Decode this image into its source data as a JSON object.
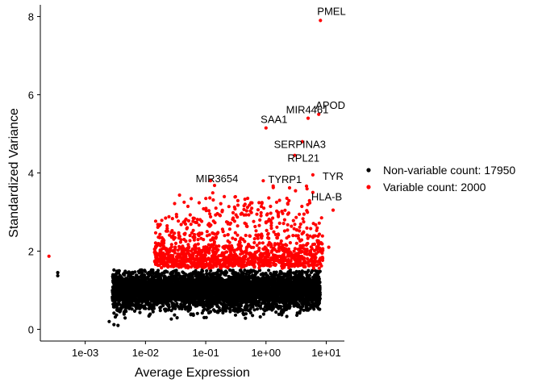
{
  "chart_data": {
    "type": "scatter",
    "title": "",
    "xlabel": "Average Expression",
    "ylabel": "Standardized Variance",
    "x_scale": "log10",
    "xlim": [
      0.00018,
      20
    ],
    "ylim": [
      -0.3,
      8.3
    ],
    "x_ticks": [
      {
        "value": 0.001,
        "label": "1e-03"
      },
      {
        "value": 0.01,
        "label": "1e-02"
      },
      {
        "value": 0.1,
        "label": "1e-01"
      },
      {
        "value": 1,
        "label": "1e+00"
      },
      {
        "value": 10,
        "label": "1e+01"
      }
    ],
    "y_ticks": [
      0,
      2,
      4,
      6,
      8
    ],
    "grid": false,
    "legend_position": "right",
    "series": [
      {
        "name": "Non-variable count: 17950",
        "color": "#000000",
        "y_range_typical": [
          0.4,
          1.5
        ]
      },
      {
        "name": "Variable count: 2000",
        "color": "#ff0000",
        "y_range_typical": [
          1.5,
          3.2
        ]
      }
    ],
    "labeled_points": [
      {
        "label": "PMEL",
        "x": 8.0,
        "y": 7.9
      },
      {
        "label": "APOD",
        "x": 7.5,
        "y": 5.5
      },
      {
        "label": "SAA1",
        "x": 1.0,
        "y": 5.15
      },
      {
        "label": "MIR4461",
        "x": 5.0,
        "y": 5.4
      },
      {
        "label": "SERPINA3",
        "x": 4.0,
        "y": 4.8
      },
      {
        "label": "RPL21",
        "x": 3.0,
        "y": 4.45
      },
      {
        "label": "MIR3654",
        "x": 0.12,
        "y": 3.8
      },
      {
        "label": "TYRP1",
        "x": 0.9,
        "y": 3.8
      },
      {
        "label": "TYR",
        "x": 6.0,
        "y": 3.95
      },
      {
        "label": "HLA-B",
        "x": 6.0,
        "y": 3.5
      }
    ],
    "outliers": [
      {
        "x": 0.00025,
        "y": 1.87,
        "series": 1
      },
      {
        "x": 0.00035,
        "y": 1.45,
        "series": 0
      },
      {
        "x": 0.00035,
        "y": 1.37,
        "series": 0
      },
      {
        "x": 0.14,
        "y": 3.68,
        "series": 1
      },
      {
        "x": 13,
        "y": 3.05,
        "series": 1
      },
      {
        "x": 11,
        "y": 2.1,
        "series": 1
      },
      {
        "x": 0.0025,
        "y": 0.2,
        "series": 0
      },
      {
        "x": 0.003,
        "y": 0.12,
        "series": 0
      },
      {
        "x": 0.0035,
        "y": 0.1,
        "series": 0
      }
    ]
  }
}
